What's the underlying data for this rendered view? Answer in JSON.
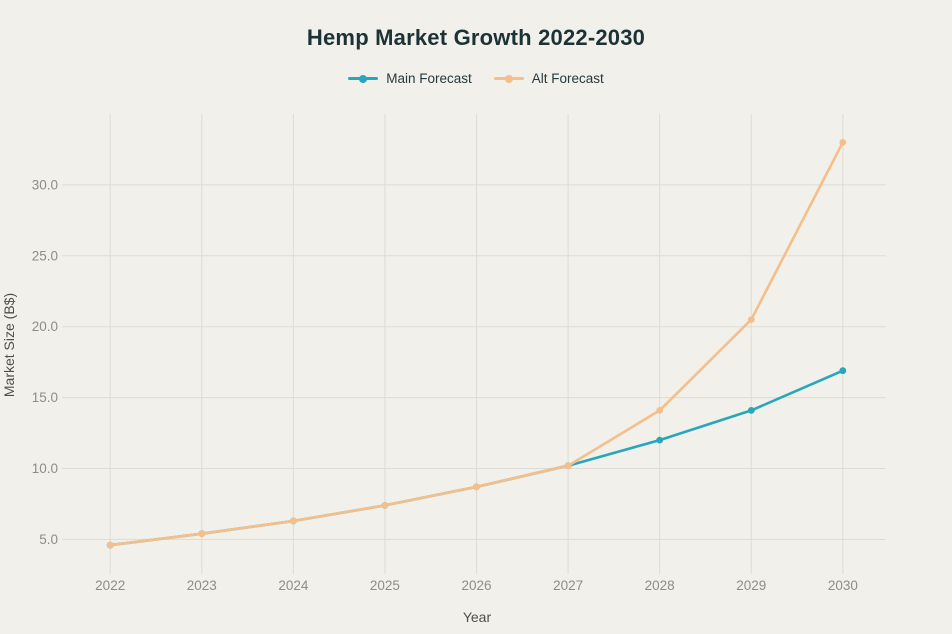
{
  "title": "Hemp Market Growth 2022-2030",
  "legend": {
    "items": [
      {
        "label": "Main Forecast",
        "color": "#28a7bc"
      },
      {
        "label": "Alt Forecast",
        "color": "#f4bf8b"
      }
    ]
  },
  "chart_data": {
    "type": "line",
    "title": "Hemp Market Growth 2022-2030",
    "xlabel": "Year",
    "ylabel": "Market Size (B$)",
    "x": [
      2022,
      2023,
      2024,
      2025,
      2026,
      2027,
      2028,
      2029,
      2030
    ],
    "series": [
      {
        "name": "Main Forecast",
        "color": "#28a7bc",
        "values": [
          4.6,
          5.4,
          6.3,
          7.4,
          8.7,
          10.2,
          12.0,
          14.1,
          16.9
        ]
      },
      {
        "name": "Alt Forecast",
        "color": "#f4bf8b",
        "values": [
          4.6,
          5.4,
          6.3,
          7.4,
          8.7,
          10.2,
          14.1,
          20.5,
          33.0
        ]
      }
    ],
    "ylim": [
      2.8,
      35.0
    ],
    "yticks": [
      5,
      10,
      15,
      20,
      25,
      30
    ],
    "ytick_labels": [
      "5.0",
      "10.0",
      "15.0",
      "20.0",
      "25.0",
      "30.0"
    ],
    "xtick_labels": [
      "2022",
      "2023",
      "2024",
      "2025",
      "2026",
      "2027",
      "2028",
      "2029",
      "2030"
    ],
    "grid": true,
    "legend_position": "top",
    "marker": "circle",
    "colors": {
      "background": "#f1f0ea",
      "gridline": "#dedcd4",
      "tick_label": "#8d8d87",
      "axis_title": "#4f4f49",
      "title": "#1d3237"
    }
  }
}
